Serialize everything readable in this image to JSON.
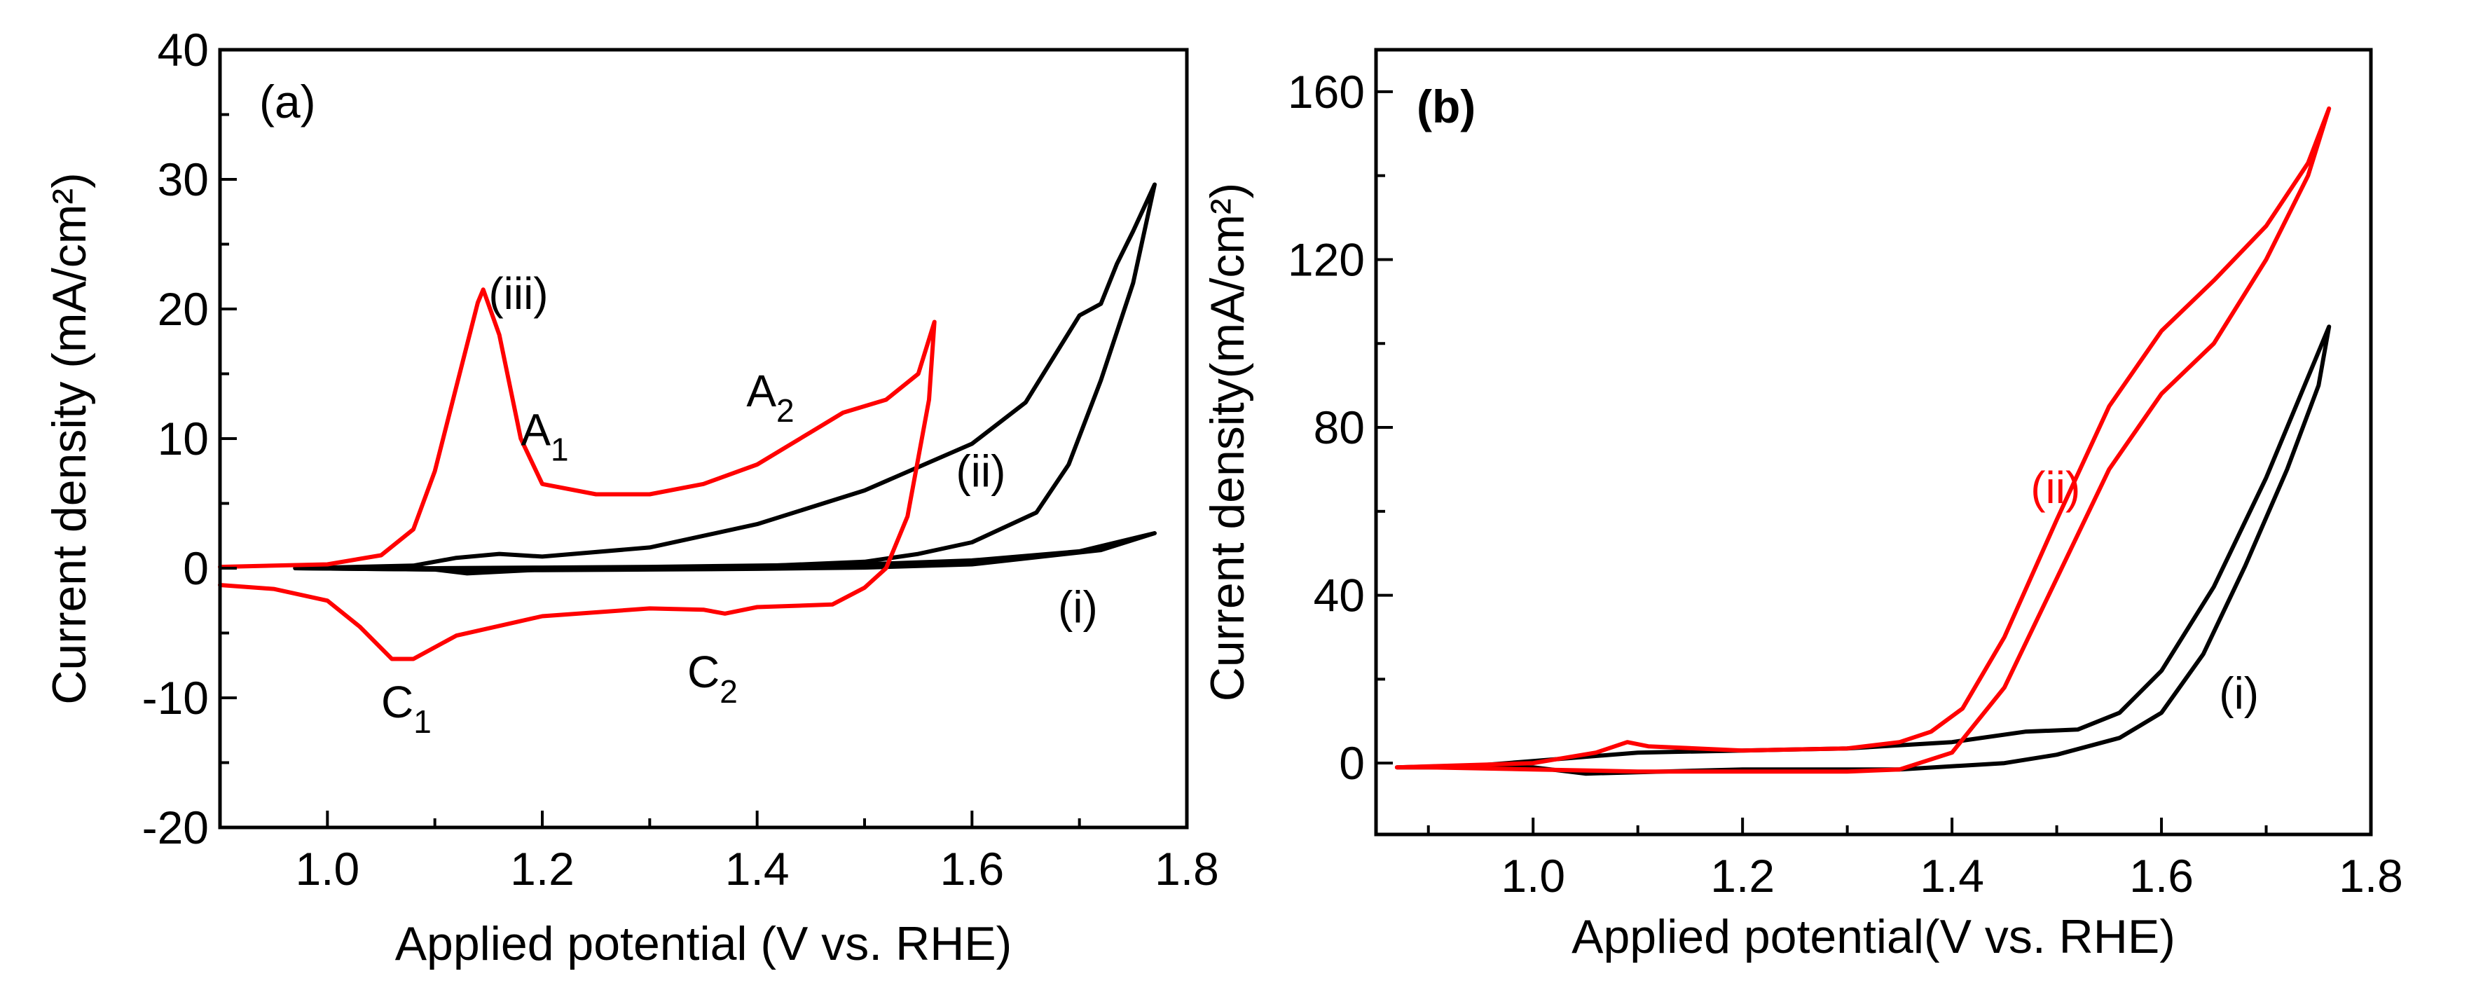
{
  "chart_data": [
    {
      "panel": "(a)",
      "type": "line",
      "xlabel": "Applied potential (V vs. RHE)",
      "ylabel": "Current density (mA/cm²)",
      "xlim": [
        0.9,
        1.8
      ],
      "ylim": [
        -20,
        40
      ],
      "xticks": [
        "1.0",
        "1.2",
        "1.4",
        "1.6",
        "1.8"
      ],
      "xtick_values": [
        1.0,
        1.2,
        1.4,
        1.6,
        1.8
      ],
      "yticks": [
        "-20",
        "-10",
        "0",
        "10",
        "20",
        "30",
        "40"
      ],
      "ytick_values": [
        -20,
        -10,
        0,
        10,
        20,
        30,
        40
      ],
      "annotations": [
        {
          "name": "label-iii",
          "text": "(iii)",
          "x": 1.15,
          "y": 20,
          "color": "#000000"
        },
        {
          "name": "label-ii",
          "text": "(ii)",
          "x": 1.585,
          "y": 6.3,
          "color": "#000000"
        },
        {
          "name": "label-i",
          "text": "(i)",
          "x": 1.68,
          "y": -4.2,
          "color": "#000000"
        },
        {
          "name": "label-A1",
          "text": "A",
          "sub": "1",
          "x": 1.18,
          "y": 9.5,
          "color": "#000000"
        },
        {
          "name": "label-A2",
          "text": "A",
          "sub": "2",
          "x": 1.39,
          "y": 12.5,
          "color": "#000000"
        },
        {
          "name": "label-C1",
          "text": "C",
          "sub": "1",
          "x": 1.05,
          "y": -11.5,
          "color": "#000000"
        },
        {
          "name": "label-C2",
          "text": "C",
          "sub": "2",
          "x": 1.335,
          "y": -9.2,
          "color": "#000000"
        }
      ],
      "series": [
        {
          "name": "(i)",
          "color": "#000000",
          "points": [
            [
              0.97,
              0
            ],
            [
              1.1,
              0
            ],
            [
              1.2,
              0.05
            ],
            [
              1.3,
              0.1
            ],
            [
              1.4,
              0.2
            ],
            [
              1.5,
              0.3
            ],
            [
              1.6,
              0.6
            ],
            [
              1.7,
              1.3
            ],
            [
              1.77,
              2.7
            ],
            [
              1.72,
              1.4
            ],
            [
              1.6,
              0.3
            ],
            [
              1.5,
              0.05
            ],
            [
              1.4,
              -0.05
            ],
            [
              1.3,
              -0.1
            ],
            [
              1.2,
              -0.15
            ],
            [
              1.1,
              -0.1
            ],
            [
              0.97,
              0
            ]
          ]
        },
        {
          "name": "(ii)",
          "color": "#000000",
          "points": [
            [
              0.97,
              0
            ],
            [
              1.08,
              0.2
            ],
            [
              1.12,
              0.8
            ],
            [
              1.16,
              1.1
            ],
            [
              1.2,
              0.9
            ],
            [
              1.3,
              1.6
            ],
            [
              1.4,
              3.4
            ],
            [
              1.5,
              6
            ],
            [
              1.6,
              9.6
            ],
            [
              1.65,
              12.8
            ],
            [
              1.7,
              19.5
            ],
            [
              1.72,
              20.4
            ],
            [
              1.735,
              23.5
            ],
            [
              1.75,
              26
            ],
            [
              1.77,
              29.6
            ],
            [
              1.75,
              22
            ],
            [
              1.72,
              14.5
            ],
            [
              1.69,
              8
            ],
            [
              1.66,
              4.3
            ],
            [
              1.6,
              2
            ],
            [
              1.55,
              1.1
            ],
            [
              1.5,
              0.5
            ],
            [
              1.4,
              0.15
            ],
            [
              1.3,
              0
            ],
            [
              1.2,
              -0.1
            ],
            [
              1.13,
              -0.4
            ],
            [
              1.1,
              -0.1
            ],
            [
              0.97,
              0
            ]
          ]
        },
        {
          "name": "(iii)",
          "color": "#ff0000",
          "points": [
            [
              0.9,
              0.1
            ],
            [
              1.0,
              0.3
            ],
            [
              1.05,
              1
            ],
            [
              1.08,
              3
            ],
            [
              1.1,
              7.5
            ],
            [
              1.12,
              14
            ],
            [
              1.14,
              20.5
            ],
            [
              1.145,
              21.5
            ],
            [
              1.16,
              18
            ],
            [
              1.18,
              10
            ],
            [
              1.2,
              6.5
            ],
            [
              1.25,
              5.7
            ],
            [
              1.3,
              5.7
            ],
            [
              1.35,
              6.5
            ],
            [
              1.4,
              8
            ],
            [
              1.45,
              10.5
            ],
            [
              1.48,
              12
            ],
            [
              1.52,
              13
            ],
            [
              1.55,
              15
            ],
            [
              1.565,
              19
            ],
            [
              1.56,
              13
            ],
            [
              1.54,
              4
            ],
            [
              1.52,
              0
            ],
            [
              1.5,
              -1.5
            ],
            [
              1.47,
              -2.8
            ],
            [
              1.4,
              -3
            ],
            [
              1.37,
              -3.5
            ],
            [
              1.35,
              -3.2
            ],
            [
              1.3,
              -3.1
            ],
            [
              1.2,
              -3.7
            ],
            [
              1.12,
              -5.2
            ],
            [
              1.08,
              -7
            ],
            [
              1.06,
              -7
            ],
            [
              1.03,
              -4.5
            ],
            [
              1.0,
              -2.5
            ],
            [
              0.95,
              -1.6
            ],
            [
              0.9,
              -1.3
            ]
          ]
        }
      ]
    },
    {
      "panel": "(b)",
      "type": "line",
      "xlabel": "Applied potential(V vs. RHE)",
      "ylabel": "Current density(mA/cm²)",
      "xlim": [
        0.85,
        1.8
      ],
      "ylim": [
        -17,
        170
      ],
      "xticks": [
        "1.0",
        "1.2",
        "1.4",
        "1.6",
        "1.8"
      ],
      "xtick_values": [
        1.0,
        1.2,
        1.4,
        1.6,
        1.8
      ],
      "yticks": [
        "0",
        "40",
        "80",
        "120",
        "160"
      ],
      "ytick_values": [
        0,
        40,
        80,
        120,
        160
      ],
      "annotations": [
        {
          "name": "label-ii",
          "text": "(ii)",
          "x": 1.475,
          "y": 62,
          "color": "#ff0000"
        },
        {
          "name": "label-i",
          "text": "(i)",
          "x": 1.655,
          "y": 13,
          "color": "#000000"
        }
      ],
      "series": [
        {
          "name": "(i)",
          "color": "#000000",
          "points": [
            [
              0.87,
              -1
            ],
            [
              0.95,
              -0.5
            ],
            [
              1.0,
              0.5
            ],
            [
              1.1,
              2.5
            ],
            [
              1.2,
              3
            ],
            [
              1.3,
              3.5
            ],
            [
              1.4,
              5
            ],
            [
              1.47,
              7.5
            ],
            [
              1.52,
              8
            ],
            [
              1.56,
              12
            ],
            [
              1.6,
              22
            ],
            [
              1.65,
              42
            ],
            [
              1.7,
              68
            ],
            [
              1.74,
              92
            ],
            [
              1.76,
              104
            ],
            [
              1.75,
              90
            ],
            [
              1.72,
              70
            ],
            [
              1.68,
              47
            ],
            [
              1.64,
              26
            ],
            [
              1.6,
              12
            ],
            [
              1.56,
              6
            ],
            [
              1.5,
              2
            ],
            [
              1.45,
              0
            ],
            [
              1.35,
              -1.5
            ],
            [
              1.2,
              -1.5
            ],
            [
              1.05,
              -2.5
            ],
            [
              1.0,
              -1
            ],
            [
              0.9,
              -1
            ],
            [
              0.87,
              -1
            ]
          ]
        },
        {
          "name": "(ii)",
          "color": "#ff0000",
          "points": [
            [
              0.87,
              -1
            ],
            [
              1.0,
              0
            ],
            [
              1.06,
              2.5
            ],
            [
              1.09,
              5
            ],
            [
              1.11,
              4
            ],
            [
              1.2,
              3
            ],
            [
              1.3,
              3.5
            ],
            [
              1.35,
              5
            ],
            [
              1.38,
              7.5
            ],
            [
              1.41,
              13
            ],
            [
              1.45,
              30
            ],
            [
              1.5,
              58
            ],
            [
              1.55,
              85
            ],
            [
              1.6,
              103
            ],
            [
              1.65,
              115
            ],
            [
              1.7,
              128
            ],
            [
              1.74,
              143
            ],
            [
              1.76,
              156
            ],
            [
              1.74,
              140
            ],
            [
              1.7,
              120
            ],
            [
              1.65,
              100
            ],
            [
              1.6,
              88
            ],
            [
              1.55,
              70
            ],
            [
              1.5,
              44
            ],
            [
              1.45,
              18
            ],
            [
              1.4,
              2.5
            ],
            [
              1.35,
              -1.5
            ],
            [
              1.3,
              -2
            ],
            [
              1.2,
              -2
            ],
            [
              1.1,
              -2
            ],
            [
              1.0,
              -1.5
            ],
            [
              0.9,
              -1
            ],
            [
              0.87,
              -1
            ]
          ]
        }
      ]
    }
  ]
}
